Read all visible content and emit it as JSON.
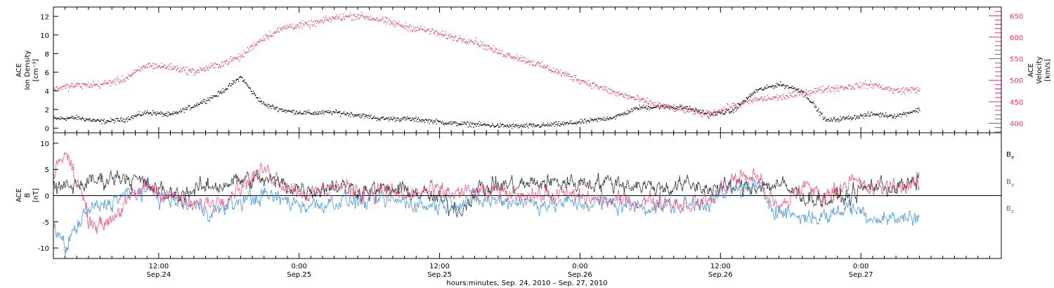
{
  "chart_data": [
    {
      "type": "scatter",
      "panel": "plasma",
      "ylabel_left": [
        "ACE",
        "Ion Density",
        "[cm⁻³]"
      ],
      "ylabel_right": [
        "ACE",
        "Velocity",
        "[km/s]"
      ],
      "ylim_left": [
        -0.5,
        13
      ],
      "yticks_left": [
        0,
        2,
        4,
        6,
        8,
        10,
        12
      ],
      "ylim_right": [
        378,
        670
      ],
      "yticks_right": [
        400,
        450,
        500,
        550,
        600,
        650
      ],
      "right_axis_color": "#e8336a",
      "series": [
        {
          "axis": "left",
          "color": "#000000",
          "x_hours": [
            0,
            2,
            4,
            6,
            8,
            10,
            12,
            13,
            14,
            15,
            16,
            17,
            18,
            20,
            22,
            24,
            26,
            28,
            30,
            32,
            34,
            36,
            38,
            40,
            42,
            44,
            46,
            48,
            50,
            52,
            54,
            56,
            58,
            60,
            62,
            64,
            66,
            68,
            70,
            72,
            74
          ],
          "values": [
            1.0,
            1.1,
            0.7,
            0.9,
            1.7,
            1.4,
            2.4,
            3.0,
            3.6,
            4.5,
            5.5,
            3.8,
            2.5,
            1.8,
            1.6,
            1.7,
            1.4,
            1.0,
            1.0,
            0.8,
            0.5,
            0.4,
            0.25,
            0.2,
            0.3,
            0.5,
            0.8,
            1.2,
            2.2,
            2.3,
            2.2,
            1.5,
            1.8,
            4.0,
            4.7,
            4.0,
            0.8,
            1.1,
            1.5,
            1.3,
            2.0
          ]
        },
        {
          "axis": "right",
          "color": "#e8336a",
          "x_hours": [
            0,
            2,
            4,
            6,
            8,
            10,
            12,
            14,
            15,
            16,
            17,
            18,
            20,
            22,
            24,
            26,
            28,
            30,
            32,
            34,
            36,
            38,
            40,
            42,
            44,
            46,
            48,
            50,
            52,
            54,
            56,
            58,
            60,
            62,
            64,
            66,
            68,
            70,
            72,
            74
          ],
          "values": [
            480,
            488,
            490,
            502,
            535,
            530,
            520,
            535,
            545,
            555,
            580,
            600,
            625,
            630,
            645,
            650,
            640,
            625,
            615,
            600,
            590,
            565,
            550,
            530,
            510,
            490,
            470,
            455,
            440,
            430,
            420,
            440,
            455,
            460,
            470,
            480,
            485,
            490,
            475,
            480
          ]
        }
      ]
    },
    {
      "type": "line",
      "panel": "magnetic-field",
      "ylabel_left": [
        "ACE",
        "B",
        "[nT]"
      ],
      "ylim": [
        -12,
        12
      ],
      "yticks": [
        -10,
        -5,
        0,
        5,
        10
      ],
      "series": [
        {
          "name": "Bx",
          "color": "#000000",
          "x_hours": [
            0,
            2,
            4,
            6,
            8,
            10,
            12,
            14,
            16,
            18,
            20,
            22,
            24,
            26,
            28,
            30,
            32,
            34,
            35,
            36,
            38,
            40,
            42,
            44,
            46,
            48,
            50,
            52,
            54,
            56,
            58,
            60,
            62,
            64,
            66,
            68,
            70,
            72,
            74
          ],
          "values": [
            1,
            2,
            3,
            4,
            2,
            0,
            1,
            2,
            3,
            3,
            2,
            1,
            2,
            1,
            1,
            1,
            0,
            -2,
            -2.5,
            1,
            2,
            2,
            2.5,
            2.5,
            2.5,
            2.5,
            2,
            1.5,
            2,
            1.5,
            1.5,
            2,
            2,
            0,
            -1,
            0,
            2,
            1.5,
            2.5
          ]
        },
        {
          "name": "By",
          "color": "#1f7fd9",
          "x_hours": [
            0,
            1,
            2,
            3,
            4,
            6,
            8,
            10,
            12,
            14,
            16,
            18,
            20,
            22,
            24,
            26,
            28,
            30,
            32,
            34,
            36,
            38,
            40,
            42,
            44,
            46,
            48,
            50,
            52,
            54,
            56,
            58,
            60,
            62,
            64,
            66,
            68,
            70,
            72,
            74
          ],
          "values": [
            -5,
            -10,
            -6,
            -3,
            -2,
            0,
            1,
            -1,
            -2,
            -3,
            -1,
            0,
            -1,
            -2,
            -1,
            -1,
            -1,
            -1,
            -2,
            -1,
            -1,
            -1,
            -1,
            -1.5,
            -1.5,
            -1.5,
            -1.5,
            -2,
            -2,
            -2,
            -1,
            1,
            2,
            -3,
            -4,
            -4,
            -2,
            -4,
            -4.5,
            -4
          ]
        },
        {
          "name": "Bz",
          "color": "#e8336a",
          "x_hours": [
            0,
            1,
            2,
            3,
            4,
            6,
            8,
            10,
            12,
            14,
            16,
            18,
            20,
            22,
            24,
            26,
            28,
            30,
            32,
            34,
            36,
            38,
            40,
            42,
            44,
            46,
            48,
            50,
            52,
            54,
            56,
            58,
            60,
            62,
            64,
            66,
            68,
            70,
            72,
            74
          ],
          "values": [
            5,
            8,
            3,
            -4,
            -6,
            -2,
            2,
            0,
            -2,
            -1,
            2,
            5,
            2,
            0,
            2,
            1,
            1,
            0,
            1,
            0.5,
            0.5,
            0.5,
            0.5,
            0,
            0,
            -0.5,
            -1,
            -1,
            -1,
            -1.5,
            -1,
            3,
            4,
            -3,
            2,
            0,
            3,
            1,
            2,
            2
          ]
        }
      ],
      "legend": [
        {
          "label": "B",
          "sub": "x",
          "color": "#000000"
        },
        {
          "label": "B",
          "sub": "y",
          "color": "#1f7fd9"
        },
        {
          "label": "B",
          "sub": "z",
          "color": "#e8336a"
        }
      ]
    }
  ],
  "x_axis": {
    "start": "Sep. 24, 2010 03:00",
    "range_hours": [
      0,
      81
    ],
    "ticks": [
      {
        "hour": 9,
        "time": "12:00",
        "date": "Sep.24"
      },
      {
        "hour": 21,
        "time": "0:00",
        "date": "Sep.25"
      },
      {
        "hour": 33,
        "time": "12:00",
        "date": "Sep.25"
      },
      {
        "hour": 45,
        "time": "0:00",
        "date": "Sep.26"
      },
      {
        "hour": 57,
        "time": "12:00",
        "date": "Sep.26"
      },
      {
        "hour": 69,
        "time": "0:00",
        "date": "Sep.27"
      }
    ],
    "xlabel": "hours:minutes, Sep. 24, 2010 – Sep. 27, 2010"
  }
}
